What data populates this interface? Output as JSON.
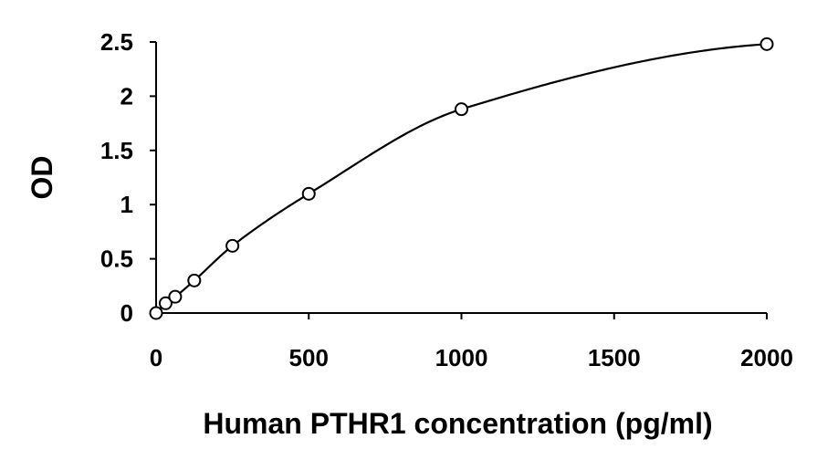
{
  "chart_data": {
    "type": "scatter",
    "title": "",
    "xlabel": "Human PTHR1 concentration (pg/ml)",
    "ylabel": "OD",
    "xlim": [
      0,
      2000
    ],
    "ylim": [
      0,
      2.5
    ],
    "x_ticks": [
      0,
      500,
      1000,
      1500,
      2000
    ],
    "x_tick_labels": [
      "0",
      "500",
      "1000",
      "1500",
      "2000"
    ],
    "y_ticks": [
      0,
      0.5,
      1,
      1.5,
      2,
      2.5
    ],
    "y_tick_labels": [
      "0",
      "0.5",
      "1",
      "1.5",
      "2",
      "2.5"
    ],
    "grid": false,
    "legend": "none",
    "series": [
      {
        "marker": "open-circle",
        "line": "smooth-fit",
        "color": "#000000",
        "x": [
          0,
          31.25,
          62.5,
          125,
          250,
          500,
          1000,
          2000
        ],
        "y": [
          0.0,
          0.09,
          0.15,
          0.3,
          0.62,
          1.1,
          1.88,
          2.48
        ]
      }
    ]
  }
}
